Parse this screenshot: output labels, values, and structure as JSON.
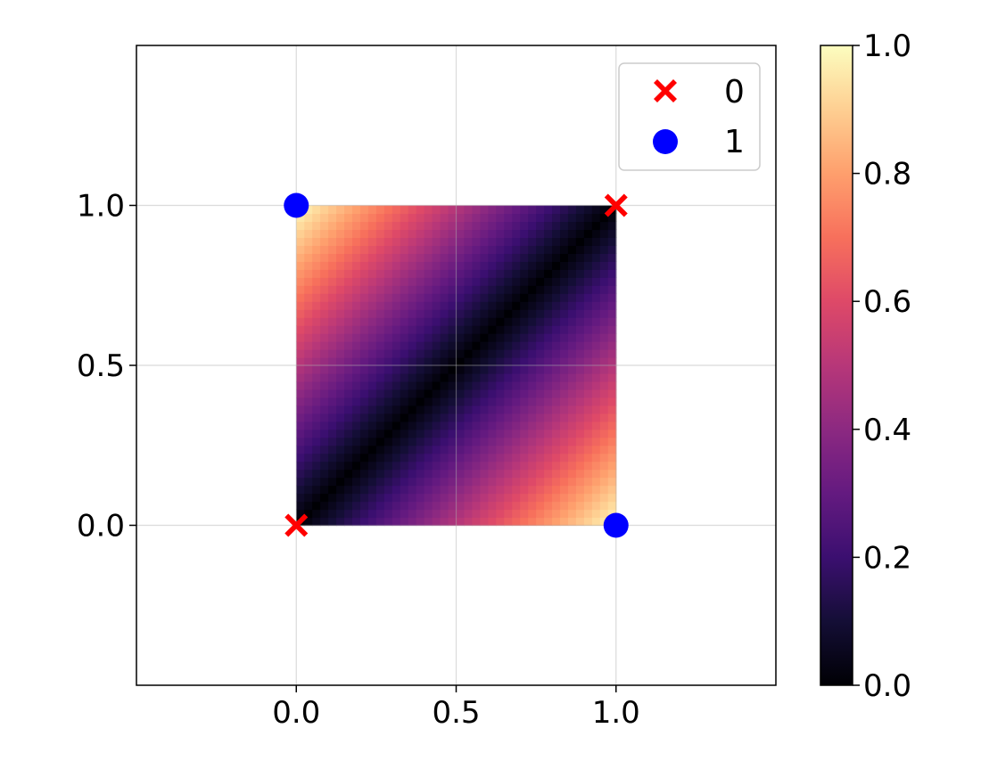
{
  "chart_data": {
    "type": "heatmap",
    "title": "",
    "xlabel": "",
    "ylabel": "",
    "xlim": [
      -0.5,
      1.5
    ],
    "ylim": [
      -0.5,
      1.5
    ],
    "x_ticks": [
      "0.0",
      "0.5",
      "1.0"
    ],
    "x_tick_values": [
      0,
      0.5,
      1
    ],
    "y_ticks": [
      "0.0",
      "0.5",
      "1.0"
    ],
    "y_tick_values": [
      0,
      0.5,
      1
    ],
    "grid": true,
    "heatmap": {
      "x_range": [
        0,
        1
      ],
      "y_range": [
        0,
        1
      ],
      "resolution": 40,
      "value": "|x - y|",
      "colormap": "magma",
      "vmin": 0,
      "vmax": 1
    },
    "colorbar": {
      "ticks": [
        "0.0",
        "0.2",
        "0.4",
        "0.6",
        "0.8",
        "1.0"
      ],
      "tick_values": [
        0,
        0.2,
        0.4,
        0.6,
        0.8,
        1.0
      ],
      "range": [
        0,
        1
      ]
    },
    "legend": {
      "placement": "top-right",
      "entries": [
        {
          "label": "0",
          "marker": "x",
          "color": "#ff0000"
        },
        {
          "label": "1",
          "marker": "o",
          "color": "#0000ff"
        }
      ]
    },
    "series": [
      {
        "name": "0",
        "marker": "x",
        "color": "#ff0000",
        "points": [
          [
            0,
            0
          ],
          [
            1,
            1
          ]
        ]
      },
      {
        "name": "1",
        "marker": "o",
        "color": "#0000ff",
        "points": [
          [
            0,
            1
          ],
          [
            1,
            0
          ]
        ]
      }
    ]
  }
}
